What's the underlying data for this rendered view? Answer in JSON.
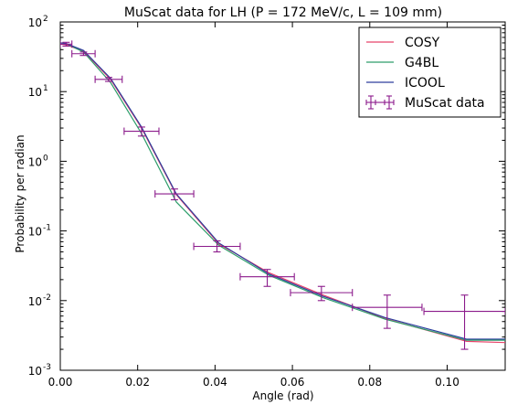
{
  "chart_data": {
    "type": "line",
    "title": "MuScat data for LH (P = 172 MeV/c, L = 109 mm)",
    "xlabel": "Angle (rad)",
    "ylabel": "Probability per radian",
    "xlim": [
      0.0,
      0.115
    ],
    "ylim": [
      0.001,
      100
    ],
    "yscale": "log",
    "grid": false,
    "legend_position": "top-right",
    "x_ticks": [
      "0.00",
      "0.02",
      "0.04",
      "0.06",
      "0.08",
      "0.10"
    ],
    "x_tick_values": [
      0.0,
      0.02,
      0.04,
      0.06,
      0.08,
      0.1
    ],
    "y_ticks": [
      {
        "base": "10",
        "exp": "-3",
        "value": 0.001
      },
      {
        "base": "10",
        "exp": "-2",
        "value": 0.01
      },
      {
        "base": "10",
        "exp": "-1",
        "value": 0.1
      },
      {
        "base": "10",
        "exp": "0",
        "value": 1
      },
      {
        "base": "10",
        "exp": "1",
        "value": 10
      },
      {
        "base": "10",
        "exp": "2",
        "value": 100
      }
    ],
    "series": [
      {
        "name": "COSY",
        "color": "#e8446a",
        "x": [
          0.0,
          0.0015,
          0.006,
          0.013,
          0.021,
          0.03,
          0.041,
          0.054,
          0.068,
          0.084,
          0.105,
          0.115
        ],
        "y": [
          48,
          47,
          38,
          15,
          3.0,
          0.33,
          0.065,
          0.025,
          0.012,
          0.0055,
          0.0026,
          0.0025
        ]
      },
      {
        "name": "G4BL",
        "color": "#2e9e6b",
        "x": [
          0.0,
          0.0015,
          0.006,
          0.013,
          0.021,
          0.03,
          0.041,
          0.054,
          0.068,
          0.084,
          0.105,
          0.115
        ],
        "y": [
          50,
          49,
          37,
          13.5,
          2.5,
          0.26,
          0.062,
          0.023,
          0.011,
          0.0054,
          0.0027,
          0.0027
        ]
      },
      {
        "name": "ICOOL",
        "color": "#2d3f9e",
        "x": [
          0.0,
          0.0015,
          0.006,
          0.013,
          0.021,
          0.03,
          0.041,
          0.054,
          0.068,
          0.084,
          0.105,
          0.115
        ],
        "y": [
          50,
          49,
          39,
          15.5,
          3.1,
          0.34,
          0.067,
          0.024,
          0.0115,
          0.0057,
          0.0028,
          0.0028
        ]
      }
    ],
    "data_series": {
      "name": "MuScat data",
      "color": "#8b1a8b",
      "points": [
        {
          "x": 0.0015,
          "y": 48,
          "xerr": 0.0015,
          "ylo": 45,
          "yhi": 51
        },
        {
          "x": 0.006,
          "y": 35,
          "xerr": 0.003,
          "ylo": 33,
          "yhi": 37
        },
        {
          "x": 0.0125,
          "y": 15,
          "xerr": 0.0035,
          "ylo": 14,
          "yhi": 16
        },
        {
          "x": 0.021,
          "y": 2.7,
          "xerr": 0.0045,
          "ylo": 2.3,
          "yhi": 3.1
        },
        {
          "x": 0.0295,
          "y": 0.34,
          "xerr": 0.005,
          "ylo": 0.28,
          "yhi": 0.4
        },
        {
          "x": 0.0405,
          "y": 0.06,
          "xerr": 0.006,
          "ylo": 0.05,
          "yhi": 0.072
        },
        {
          "x": 0.0535,
          "y": 0.022,
          "xerr": 0.007,
          "ylo": 0.016,
          "yhi": 0.028
        },
        {
          "x": 0.0675,
          "y": 0.013,
          "xerr": 0.008,
          "ylo": 0.01,
          "yhi": 0.016
        },
        {
          "x": 0.0845,
          "y": 0.008,
          "xerr": 0.009,
          "ylo": 0.004,
          "yhi": 0.012
        },
        {
          "x": 0.1045,
          "y": 0.007,
          "xerr": 0.0105,
          "ylo": 0.002,
          "yhi": 0.012
        }
      ]
    }
  }
}
